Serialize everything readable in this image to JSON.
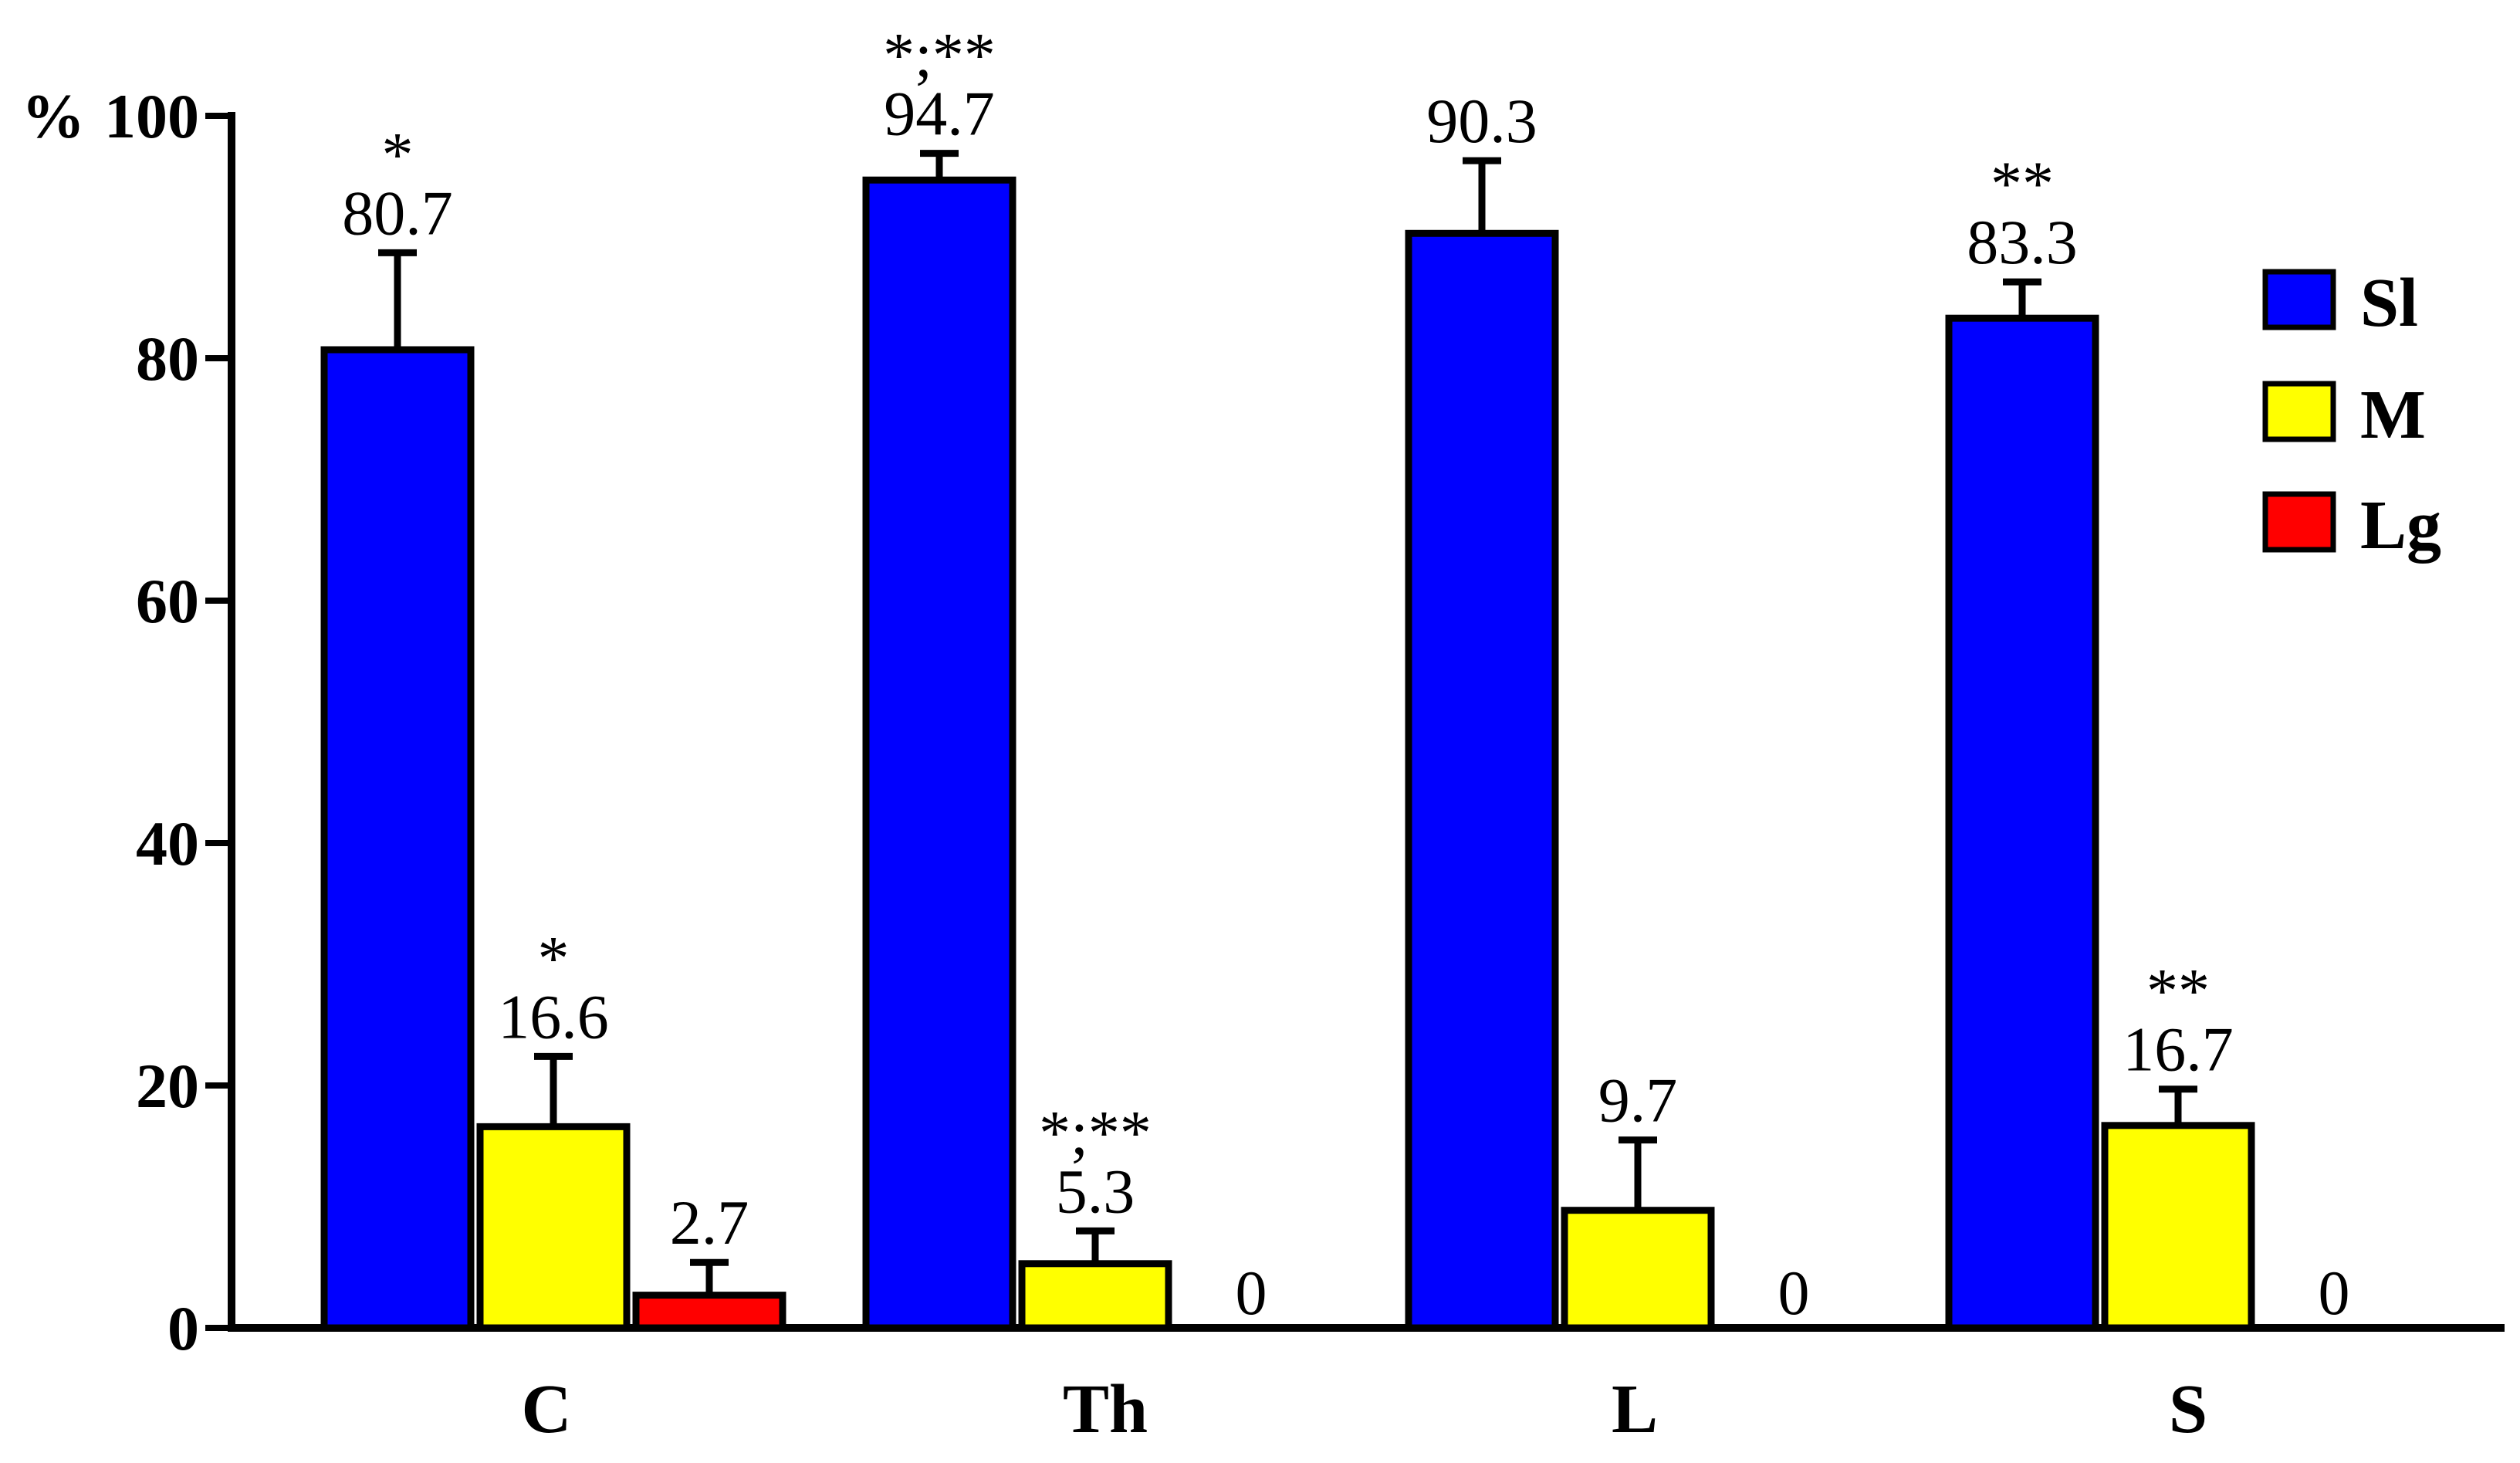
{
  "chart_data": {
    "type": "bar",
    "ylabel": "%",
    "ylim": [
      0,
      100
    ],
    "yticks": [
      0,
      20,
      40,
      60,
      80,
      100
    ],
    "grid": false,
    "legend_position": "right",
    "categories": [
      "C",
      "Th",
      "L",
      "S"
    ],
    "series": [
      {
        "name": "Sl",
        "color": "#0000ff",
        "values": [
          80.7,
          94.7,
          90.3,
          83.3
        ],
        "errors": [
          8.0,
          2.2,
          6.0,
          3.0
        ],
        "labels": [
          "80.7",
          "94.7",
          "90.3",
          "83.3"
        ],
        "sig": [
          "*",
          "*;**",
          "",
          "**"
        ]
      },
      {
        "name": "M",
        "color": "#ffff00",
        "values": [
          16.6,
          5.3,
          9.7,
          16.7
        ],
        "errors": [
          5.8,
          2.7,
          5.8,
          3.0
        ],
        "labels": [
          "16.6",
          "5.3",
          "9.7",
          "16.7"
        ],
        "sig": [
          "*",
          "*;**",
          "",
          "**"
        ]
      },
      {
        "name": "Lg",
        "color": "#ff0000",
        "values": [
          2.7,
          0,
          0,
          0
        ],
        "errors": [
          2.7,
          0,
          0,
          0
        ],
        "labels": [
          "2.7",
          "0",
          "0",
          "0"
        ],
        "sig": [
          "",
          "",
          "",
          ""
        ]
      }
    ]
  }
}
